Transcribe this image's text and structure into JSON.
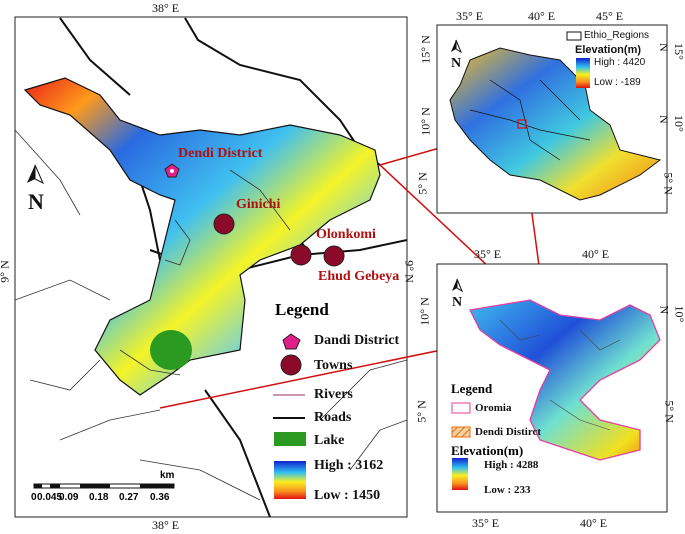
{
  "main_map": {
    "ticks": {
      "top_lon": "38° E",
      "bottom_lon": "38° E",
      "left_lat": "9° N",
      "right_lat": "9° N"
    },
    "places": {
      "dendi": "Dendi District",
      "ginichi": "Ginichi",
      "olonkomi": "Olonkomi",
      "ehud": "Ehud Gebeya"
    },
    "legend": {
      "title": "Legend",
      "items": [
        "Dandi District",
        "Towns",
        "Rivers",
        "Roads",
        "Lake"
      ],
      "elev_high": "High : 3162",
      "elev_low": "Low : 1450"
    },
    "scale": {
      "unit": "km",
      "labels": [
        "0",
        "0.045",
        "0.09",
        "0.18",
        "0.27",
        "0.36"
      ]
    }
  },
  "ethiopia_map": {
    "top_ticks": [
      "35° E",
      "40° E",
      "45° E"
    ],
    "left_ticks": [
      "15° N",
      "10° N",
      "5° N"
    ],
    "right_ticks": [
      "15° N",
      "10° N",
      "5° N"
    ],
    "legend_box": "Ethio_Regions",
    "elev_title": "Elevation(m)",
    "elev_high": "High : 4420",
    "elev_low": "Low : -189"
  },
  "oromia_map": {
    "top_ticks": [
      "35° E",
      "40° E"
    ],
    "bottom_ticks": [
      "35° E",
      "40° E"
    ],
    "left_ticks": [
      "10° N",
      "5° N"
    ],
    "right_ticks": [
      "10° N",
      "5° N"
    ],
    "legend": {
      "title": "Legend",
      "oromia": "Oromia",
      "dendi": "Dendi Distirct",
      "elev_title": "Elevation(m)",
      "elev_high": "High : 4288",
      "elev_low": "Low : 233"
    }
  },
  "colors": {
    "high": "#1030d0",
    "mid": "#f0f020",
    "low": "#e02010",
    "lake": "#2a9a20",
    "town": "#8b0a2a",
    "pent": "#e0208a",
    "connector": "#d01010"
  }
}
